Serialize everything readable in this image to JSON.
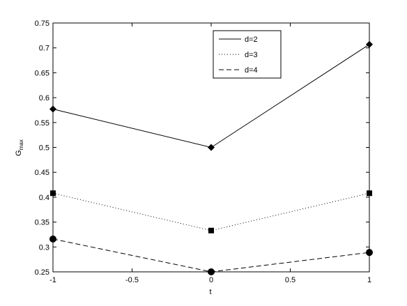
{
  "chart_data": {
    "type": "line",
    "xlabel": "t",
    "ylabel": "G",
    "ylabel_sub": "max",
    "x": [
      -1,
      0,
      1
    ],
    "series": [
      {
        "name": "d=2",
        "color": "#000000",
        "dash": "solid",
        "marker": "diamond",
        "values": [
          0.577,
          0.5,
          0.707
        ]
      },
      {
        "name": "d=3",
        "color": "#000000",
        "dash": "dotted",
        "marker": "square",
        "values": [
          0.408,
          0.333,
          0.408
        ]
      },
      {
        "name": "d=4",
        "color": "#000000",
        "dash": "dashed",
        "marker": "circle",
        "values": [
          0.316,
          0.25,
          0.289
        ]
      }
    ],
    "xlim": [
      -1,
      1
    ],
    "xticks": [
      -1,
      -0.5,
      0,
      0.5,
      1
    ],
    "ylim": [
      0.25,
      0.75
    ],
    "yticks": [
      0.25,
      0.3,
      0.35,
      0.4,
      0.45,
      0.5,
      0.55,
      0.6,
      0.65,
      0.7,
      0.75
    ],
    "grid": false,
    "legend": "upper-right"
  }
}
